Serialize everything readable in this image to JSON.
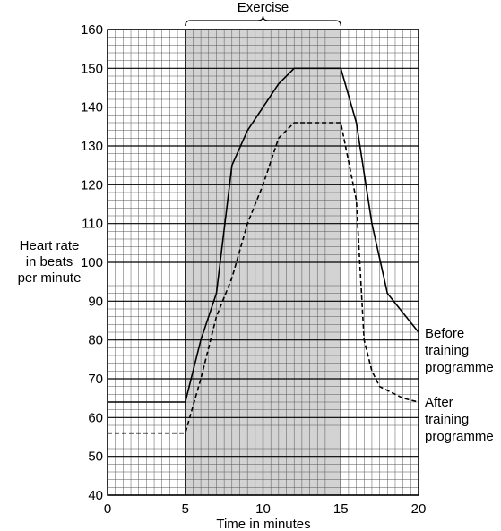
{
  "chart_data": {
    "type": "line",
    "title": "",
    "xlabel": "Time in minutes",
    "ylabel_lines": [
      "Heart rate",
      "in beats",
      "per minute"
    ],
    "xlim": [
      0,
      20
    ],
    "ylim": [
      40,
      160
    ],
    "x_ticks": [
      0,
      5,
      10,
      15,
      20
    ],
    "y_ticks": [
      40,
      50,
      60,
      70,
      80,
      90,
      100,
      110,
      120,
      130,
      140,
      150,
      160
    ],
    "grid": true,
    "shaded_region": {
      "label": "Exercise",
      "x_start": 5,
      "x_end": 15
    },
    "series": [
      {
        "name": "Before training programme",
        "name_lines": [
          "Before",
          "training",
          "programme"
        ],
        "style": "solid",
        "points": [
          [
            0,
            64
          ],
          [
            5,
            64
          ],
          [
            6,
            80
          ],
          [
            7,
            92
          ],
          [
            8,
            125
          ],
          [
            9,
            134
          ],
          [
            10,
            140
          ],
          [
            11,
            146
          ],
          [
            12,
            150
          ],
          [
            13,
            150
          ],
          [
            14,
            150
          ],
          [
            15,
            150
          ],
          [
            16,
            136
          ],
          [
            17,
            110
          ],
          [
            18,
            92
          ],
          [
            19,
            87
          ],
          [
            20,
            82
          ]
        ]
      },
      {
        "name": "After training programme",
        "name_lines": [
          "After",
          "training",
          "programme"
        ],
        "style": "dashed",
        "points": [
          [
            0,
            56
          ],
          [
            5,
            56
          ],
          [
            6,
            70
          ],
          [
            7,
            86
          ],
          [
            8,
            96
          ],
          [
            9,
            110
          ],
          [
            10,
            120
          ],
          [
            11,
            132
          ],
          [
            12,
            136
          ],
          [
            13,
            136
          ],
          [
            14,
            136
          ],
          [
            15,
            136
          ],
          [
            16,
            116
          ],
          [
            16.5,
            80
          ],
          [
            17,
            72
          ],
          [
            17.5,
            68
          ],
          [
            18,
            67
          ],
          [
            19,
            65
          ],
          [
            20,
            64
          ]
        ]
      }
    ]
  },
  "colors": {
    "background": "#ffffff",
    "shade": "#d3d3d3",
    "grid_minor": "#555555",
    "grid_major": "#000000",
    "line": "#000000"
  }
}
